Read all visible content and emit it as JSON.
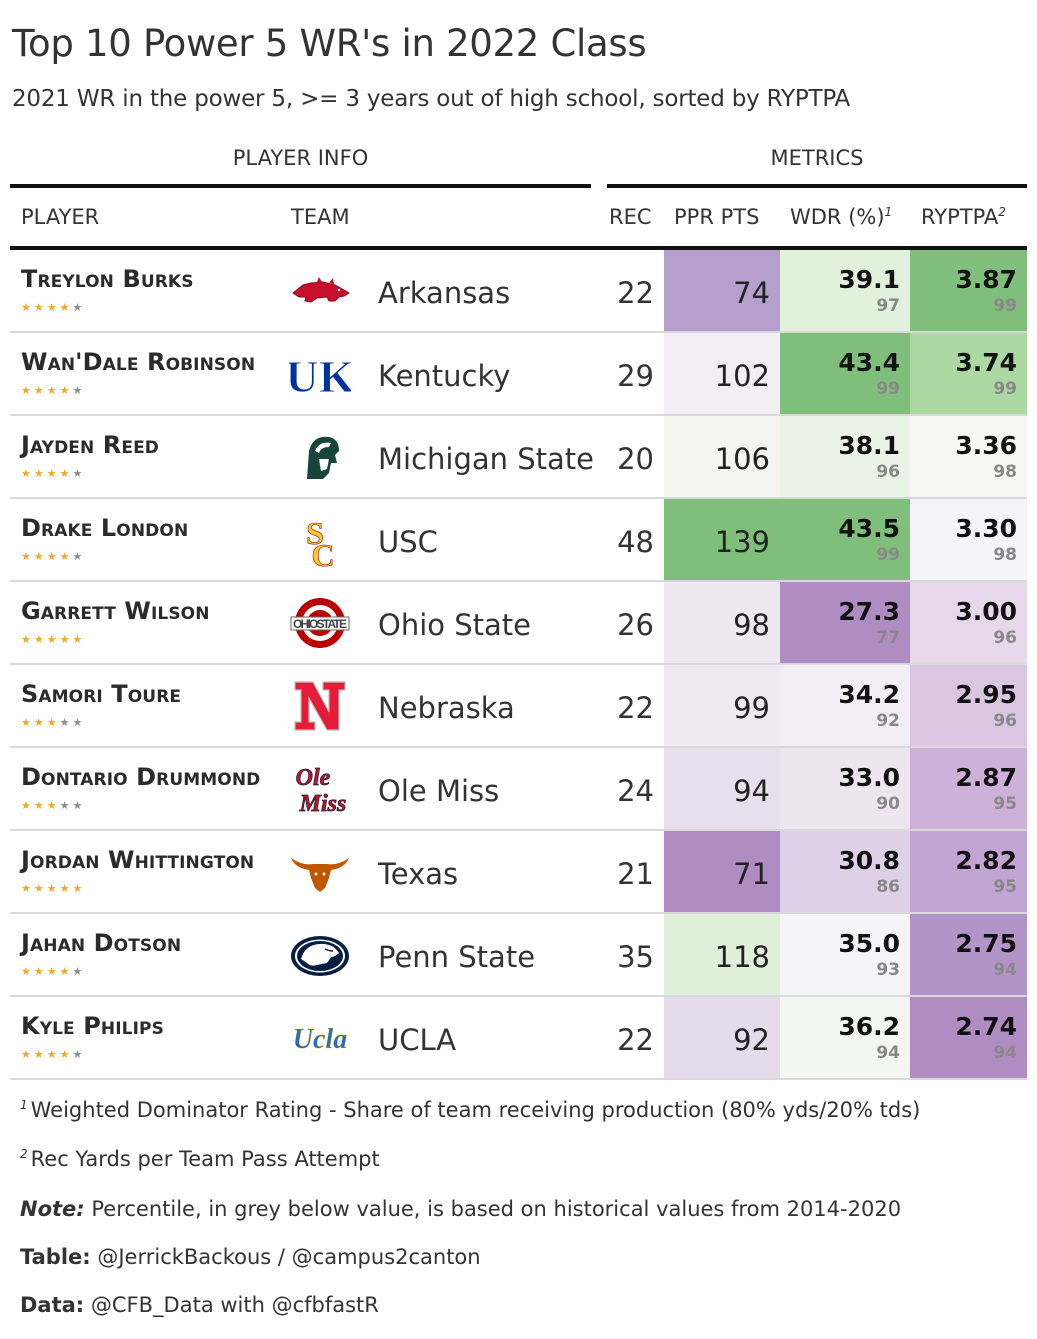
{
  "title": "Top 10 Power 5 WR's in 2022 Class",
  "subtitle": "2021 WR in the power 5, >= 3 years out of high school, sorted by RYPTPA",
  "spanners": {
    "player_info": "PLAYER INFO",
    "metrics": "METRICS"
  },
  "columns": {
    "player": "PLAYER",
    "team": "TEAM",
    "rec": "REC",
    "ppr": "PPR PTS",
    "wdr": "WDR (%)",
    "wdr_note": "1",
    "ryptpa": "RYPTPA",
    "ryptpa_note": "2"
  },
  "players": [
    {
      "name": "Treylon Burks",
      "stars": 4,
      "logo": "arkansas-razorback-logo",
      "team": "Arkansas",
      "rec": "22",
      "ppr": "74",
      "wdr": "39.1",
      "wdr_pct": "97",
      "ryptpa": "3.87",
      "ryptpa_pct": "99",
      "ppr_color": "#b79fcd",
      "wdr_color": "#e2f1dc",
      "ryptpa_color": "#7fbf7b"
    },
    {
      "name": "Wan'Dale Robinson",
      "stars": 4,
      "logo": "kentucky-uk-logo",
      "team": "Kentucky",
      "rec": "29",
      "ppr": "102",
      "wdr": "43.4",
      "wdr_pct": "99",
      "ryptpa": "3.74",
      "ryptpa_pct": "99",
      "ppr_color": "#f2eff4",
      "wdr_color": "#7fbf7b",
      "ryptpa_color": "#acd8a2"
    },
    {
      "name": "Jayden Reed",
      "stars": 4,
      "logo": "michigan-state-spartan-logo",
      "team": "Michigan State",
      "rec": "20",
      "ppr": "106",
      "wdr": "38.1",
      "wdr_pct": "96",
      "ryptpa": "3.36",
      "ryptpa_pct": "98",
      "ppr_color": "#f4f5f2",
      "wdr_color": "#eaf4e6",
      "ryptpa_color": "#f6f6f4"
    },
    {
      "name": "Drake London",
      "stars": 4,
      "logo": "usc-sc-logo",
      "team": "USC",
      "rec": "48",
      "ppr": "139",
      "wdr": "43.5",
      "wdr_pct": "99",
      "ryptpa": "3.30",
      "ryptpa_pct": "98",
      "ppr_color": "#7fbf7b",
      "wdr_color": "#7fbf7b",
      "ryptpa_color": "#f5f4f6"
    },
    {
      "name": "Garrett Wilson",
      "stars": 5,
      "logo": "ohio-state-logo",
      "team": "Ohio State",
      "rec": "26",
      "ppr": "98",
      "wdr": "27.3",
      "wdr_pct": "77",
      "ryptpa": "3.00",
      "ryptpa_pct": "96",
      "ppr_color": "#eee8f1",
      "wdr_color": "#af8dc3",
      "ryptpa_color": "#e6d8ea"
    },
    {
      "name": "Samori Toure",
      "stars": 3,
      "logo": "nebraska-n-logo",
      "team": "Nebraska",
      "rec": "22",
      "ppr": "99",
      "wdr": "34.2",
      "wdr_pct": "92",
      "ryptpa": "2.95",
      "ryptpa_pct": "96",
      "ppr_color": "#efeaf2",
      "wdr_color": "#f3eef5",
      "ryptpa_color": "#dbc6e2"
    },
    {
      "name": "Dontario Drummond",
      "stars": 3,
      "logo": "ole-miss-script-logo",
      "team": "Ole Miss",
      "rec": "24",
      "ppr": "94",
      "wdr": "33.0",
      "wdr_pct": "90",
      "ryptpa": "2.87",
      "ryptpa_pct": "95",
      "ppr_color": "#e8dfee",
      "wdr_color": "#eee5f1",
      "ryptpa_color": "#cdb1d9"
    },
    {
      "name": "Jordan Whittington",
      "stars": 5,
      "logo": "texas-longhorn-logo",
      "team": "Texas",
      "rec": "21",
      "ppr": "71",
      "wdr": "30.8",
      "wdr_pct": "86",
      "ryptpa": "2.82",
      "ryptpa_pct": "95",
      "ppr_color": "#af8dc3",
      "wdr_color": "#ded0e6",
      "ryptpa_color": "#c3a5d3"
    },
    {
      "name": "Jahan Dotson",
      "stars": 4,
      "logo": "penn-state-lion-logo",
      "team": "Penn State",
      "rec": "35",
      "ppr": "118",
      "wdr": "35.0",
      "wdr_pct": "93",
      "ryptpa": "2.75",
      "ryptpa_pct": "94",
      "ppr_color": "#e1f0db",
      "wdr_color": "#f5f4f6",
      "ryptpa_color": "#b394c9"
    },
    {
      "name": "Kyle Philips",
      "stars": 4,
      "logo": "ucla-script-logo",
      "team": "UCLA",
      "rec": "22",
      "ppr": "92",
      "wdr": "36.2",
      "wdr_pct": "94",
      "ryptpa": "2.74",
      "ryptpa_pct": "94",
      "ppr_color": "#e6dbec",
      "wdr_color": "#f4f6f2",
      "ryptpa_color": "#af8dc3"
    }
  ],
  "footnotes": {
    "n1_mark": "1",
    "n1": "Weighted Dominator Rating - Share of team receiving production (80% yds/20% tds)",
    "n2_mark": "2",
    "n2": "Rec Yards per Team Pass Attempt",
    "note_label": "Note:",
    "note": " Percentile, in grey below value, is based on historical values from 2014-2020",
    "table_label": "Table:",
    "table": " @JerrickBackous / @campus2canton",
    "data_label": "Data:",
    "data": " @CFB_Data with @cfbfastR"
  }
}
